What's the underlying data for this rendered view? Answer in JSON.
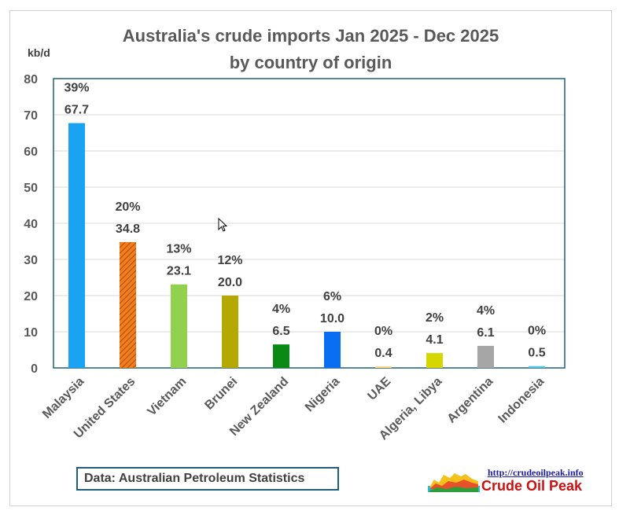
{
  "chart_data": {
    "type": "bar",
    "title": [
      "Australia's crude imports Jan  2025 - Dec 2025",
      "by country of origin"
    ],
    "ylabel": "kb/d",
    "ylim": [
      0,
      80
    ],
    "yticks": [
      0,
      10,
      20,
      30,
      40,
      50,
      60,
      70,
      80
    ],
    "grid": true,
    "categories": [
      "Malaysia",
      "United States",
      "Vietnam",
      "Brunei",
      "New Zealand",
      "Nigeria",
      "UAE",
      "Algeria, Libya",
      "Argentina",
      "Indonesia"
    ],
    "values": [
      67.7,
      34.8,
      23.1,
      20.0,
      6.5,
      10.0,
      0.4,
      4.1,
      6.1,
      0.5
    ],
    "value_labels": [
      "67.7",
      "34.8",
      "23.1",
      "20.0",
      "6.5",
      "10.0",
      "0.4",
      "4.1",
      "6.1",
      "0.5"
    ],
    "percent_labels": [
      "39%",
      "20%",
      "13%",
      "12%",
      "4%",
      "6%",
      "0%",
      "2%",
      "4%",
      "0%"
    ],
    "colors": [
      "#1aa3f2",
      "#f07d1e",
      "#92d050",
      "#b5a800",
      "#0a8a14",
      "#0a6ef2",
      "#ffd27a",
      "#d6d600",
      "#a6a6a6",
      "#4dc3e6"
    ]
  },
  "source_note": "Data: Australian Petroleum Statistics",
  "logo": {
    "url": "http://crudeoilpeak.info",
    "name": "Crude Oil Peak"
  },
  "cursor_icon": "arrow-cursor-icon"
}
